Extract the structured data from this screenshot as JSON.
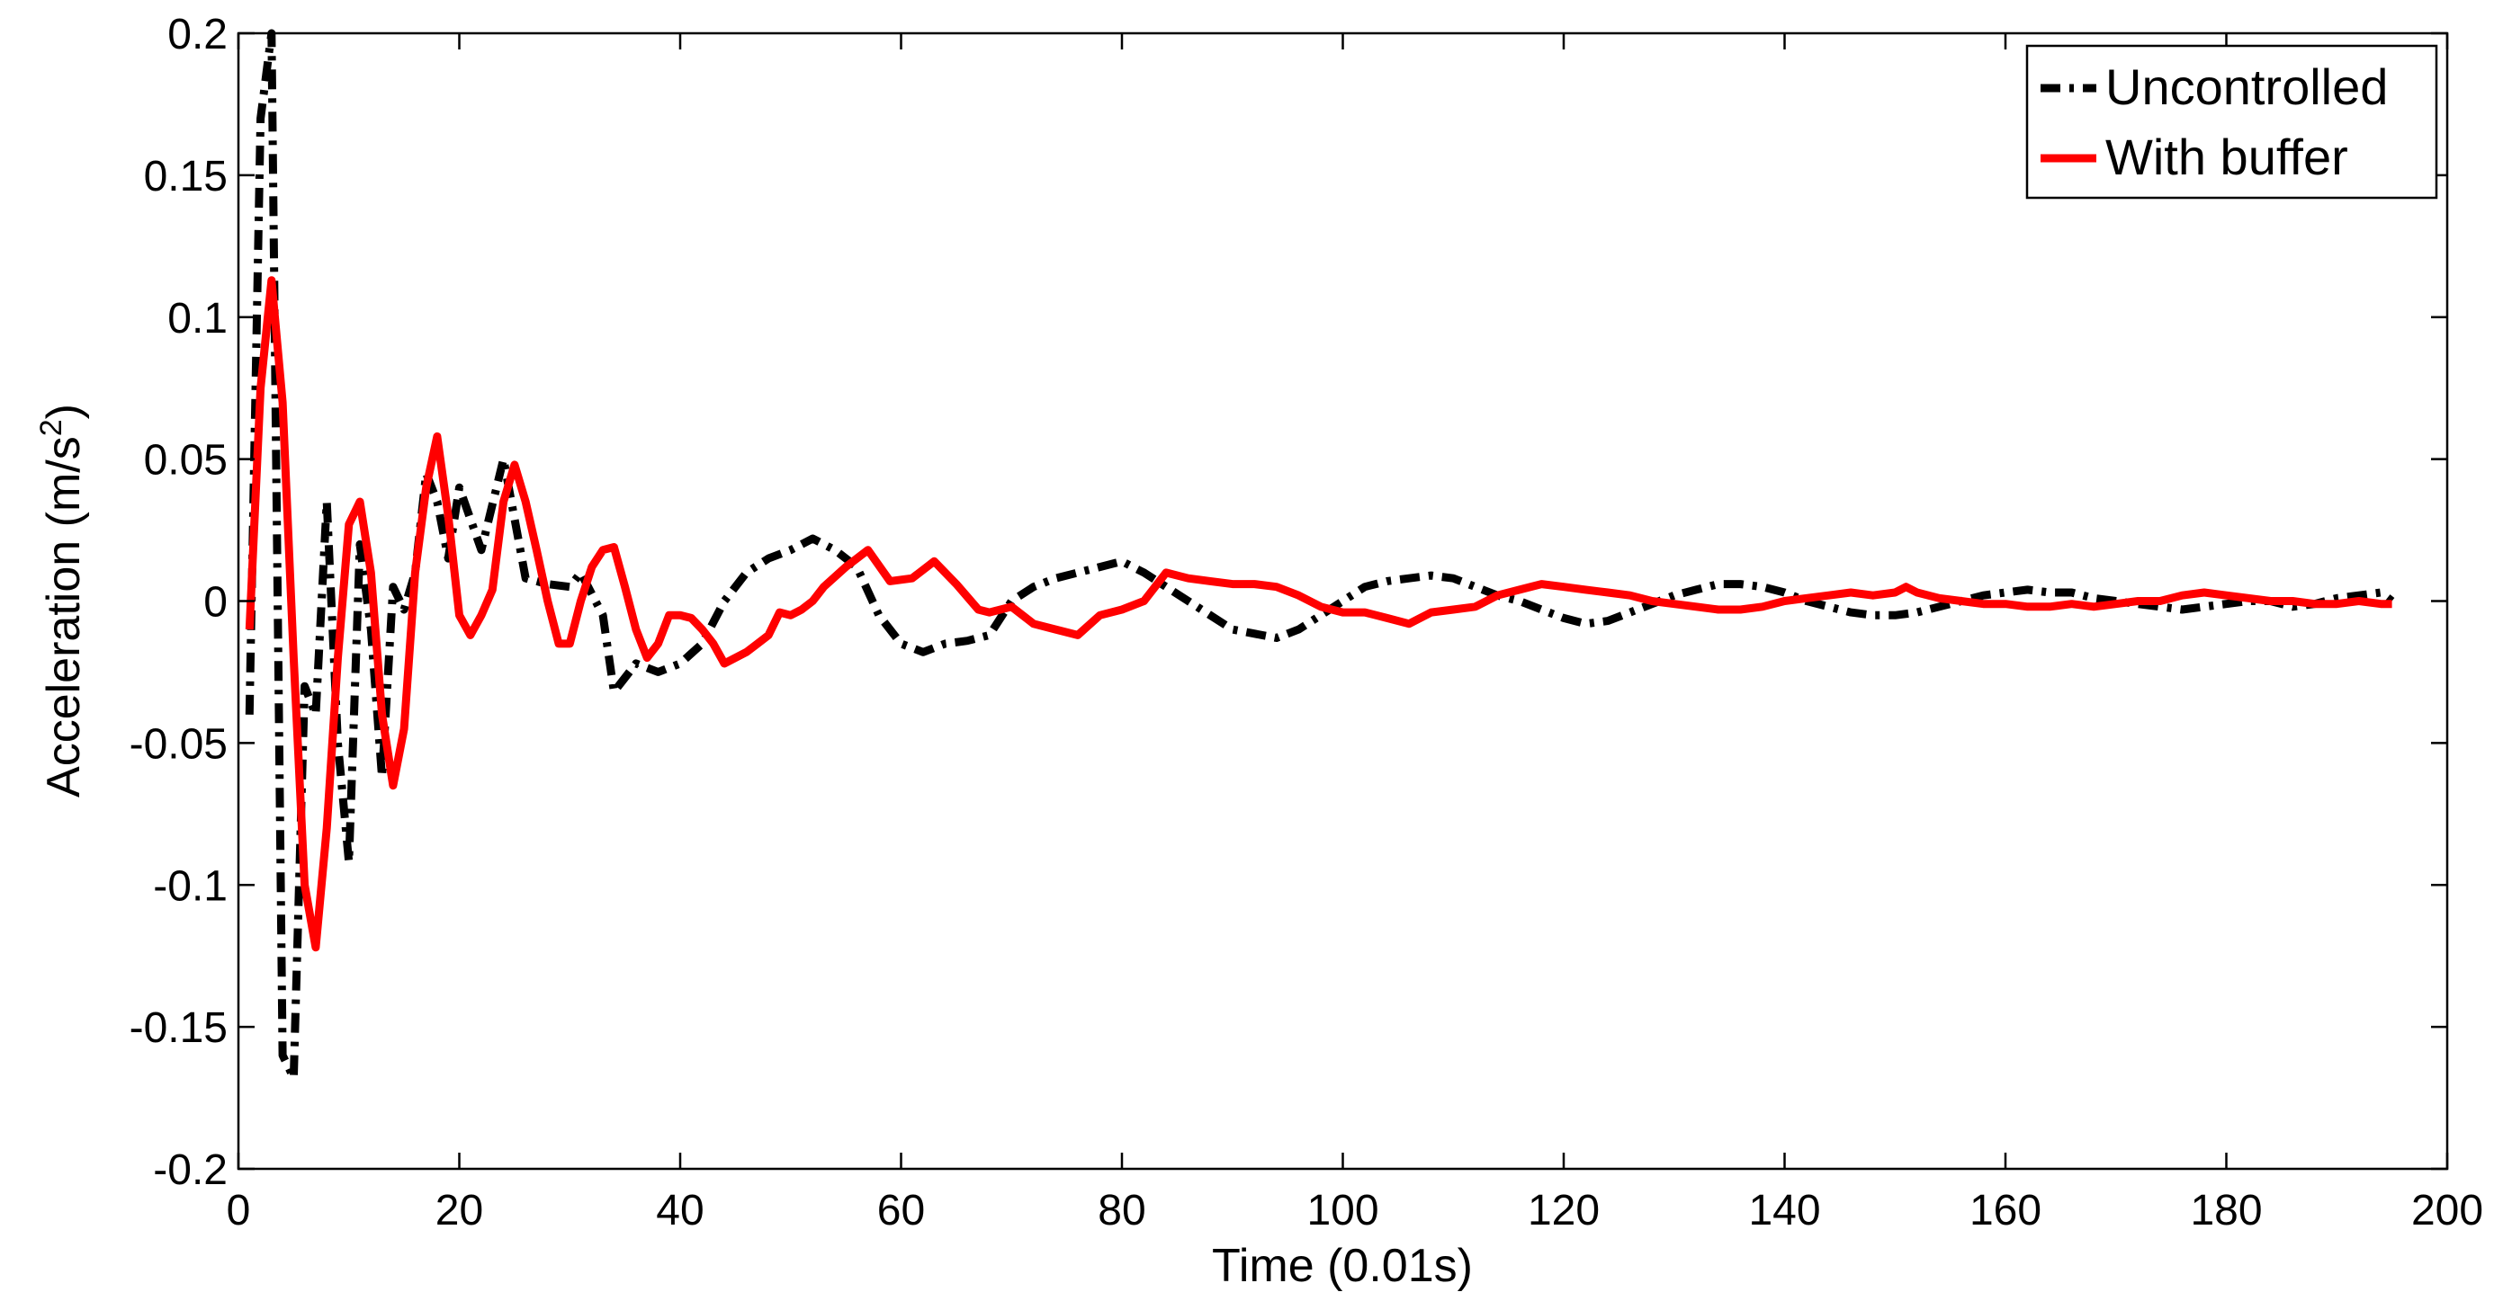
{
  "chart_data": {
    "type": "line",
    "xlabel": "Time (0.01s)",
    "ylabel": "Acceleration  (m/s",
    "ylabel_superscript": "2",
    "ylabel_suffix": ")",
    "xlim": [
      0,
      200
    ],
    "ylim": [
      -0.2,
      0.2
    ],
    "xticks": [
      "0",
      "20",
      "40",
      "60",
      "80",
      "100",
      "120",
      "140",
      "160",
      "180",
      "200"
    ],
    "yticks": [
      "-0.2",
      "-0.15",
      "-0.1",
      "-0.05",
      "0",
      "0.05",
      "0.1",
      "0.15",
      "0.2"
    ],
    "grid": false,
    "legend_position": "top-right",
    "series": [
      {
        "name": "Uncontrolled",
        "color": "#000000",
        "style": "dash-dot",
        "x": [
          1,
          2,
          3,
          4,
          5,
          6,
          7,
          8,
          9,
          10,
          11,
          12,
          13,
          14,
          15,
          16,
          17,
          18,
          19,
          20,
          22,
          24,
          26,
          28,
          30,
          31,
          33,
          34,
          36,
          38,
          40,
          42,
          44,
          46,
          48,
          50,
          52,
          54,
          56,
          58,
          60,
          62,
          64,
          66,
          68,
          70,
          72,
          74,
          76,
          78,
          80,
          82,
          84,
          86,
          88,
          90,
          94,
          96,
          98,
          100,
          102,
          104,
          106,
          108,
          110,
          112,
          114,
          116,
          118,
          120,
          122,
          124,
          126,
          128,
          130,
          132,
          134,
          136,
          138,
          140,
          142,
          144,
          146,
          148,
          150,
          152,
          154,
          156,
          158,
          160,
          162,
          164,
          166,
          168,
          170,
          172,
          174,
          176,
          178,
          180,
          182,
          184,
          186,
          188,
          190,
          192,
          194,
          195
        ],
        "y": [
          -0.04,
          0.17,
          0.2,
          -0.16,
          -0.168,
          -0.03,
          -0.04,
          0.035,
          -0.05,
          -0.092,
          0.02,
          -0.01,
          -0.062,
          0.005,
          -0.003,
          0.01,
          0.045,
          0.035,
          0.015,
          0.04,
          0.018,
          0.05,
          0.008,
          0.006,
          0.005,
          0.01,
          -0.005,
          -0.032,
          -0.022,
          -0.025,
          -0.022,
          -0.015,
          0.0,
          0.01,
          0.015,
          0.018,
          0.022,
          0.018,
          0.012,
          -0.005,
          -0.015,
          -0.018,
          -0.015,
          -0.014,
          -0.012,
          0.0,
          0.005,
          0.008,
          0.01,
          0.012,
          0.014,
          0.01,
          0.005,
          0.0,
          -0.005,
          -0.01,
          -0.013,
          -0.01,
          -0.005,
          0.0,
          0.005,
          0.007,
          0.008,
          0.009,
          0.008,
          0.005,
          0.002,
          0.0,
          -0.003,
          -0.006,
          -0.008,
          -0.007,
          -0.004,
          -0.001,
          0.002,
          0.004,
          0.006,
          0.006,
          0.005,
          0.003,
          0.0,
          -0.002,
          -0.004,
          -0.005,
          -0.005,
          -0.004,
          -0.002,
          0.0,
          0.002,
          0.003,
          0.004,
          0.003,
          0.003,
          0.001,
          0.0,
          -0.001,
          -0.002,
          -0.003,
          -0.002,
          -0.001,
          0.0,
          0.0,
          -0.002,
          -0.001,
          0.001,
          0.002,
          0.003,
          0.0
        ]
      },
      {
        "name": "With buffer",
        "color": "#ff0000",
        "style": "solid",
        "x": [
          1,
          2,
          3,
          4,
          5,
          6,
          7,
          8,
          9,
          10,
          11,
          12,
          13,
          14,
          15,
          16,
          17,
          18,
          19,
          20,
          21,
          22,
          23,
          24,
          25,
          26,
          27,
          28,
          29,
          30,
          31,
          32,
          33,
          34,
          35,
          36,
          37,
          38,
          39,
          40,
          41,
          42,
          43,
          44,
          46,
          47,
          48,
          49,
          50,
          51,
          52,
          53,
          55,
          57,
          59,
          61,
          63,
          65,
          67,
          68,
          70,
          72,
          74,
          76,
          78,
          80,
          82,
          84,
          86,
          88,
          90,
          92,
          94,
          96,
          98,
          100,
          102,
          104,
          106,
          108,
          110,
          112,
          114,
          116,
          118,
          120,
          122,
          124,
          126,
          128,
          130,
          132,
          134,
          136,
          138,
          140,
          142,
          144,
          146,
          148,
          150,
          151,
          152,
          154,
          156,
          158,
          160,
          162,
          164,
          166,
          168,
          170,
          172,
          174,
          176,
          178,
          180,
          182,
          184,
          186,
          188,
          190,
          192,
          194,
          195
        ],
        "y": [
          -0.01,
          0.075,
          0.113,
          0.07,
          -0.02,
          -0.1,
          -0.122,
          -0.08,
          -0.02,
          0.027,
          0.035,
          0.01,
          -0.04,
          -0.065,
          -0.045,
          0.01,
          0.04,
          0.058,
          0.03,
          -0.005,
          -0.012,
          -0.005,
          0.004,
          0.035,
          0.048,
          0.035,
          0.018,
          0.0,
          -0.015,
          -0.015,
          0.0,
          0.012,
          0.018,
          0.019,
          0.005,
          -0.01,
          -0.02,
          -0.015,
          -0.005,
          -0.005,
          -0.006,
          -0.01,
          -0.015,
          -0.022,
          -0.018,
          -0.015,
          -0.012,
          -0.004,
          -0.005,
          -0.003,
          0.0,
          0.005,
          0.012,
          0.018,
          0.007,
          0.008,
          0.014,
          0.006,
          -0.003,
          -0.004,
          -0.002,
          -0.008,
          -0.01,
          -0.012,
          -0.005,
          -0.003,
          0.0,
          0.01,
          0.008,
          0.007,
          0.006,
          0.006,
          0.005,
          0.002,
          -0.002,
          -0.004,
          -0.004,
          -0.006,
          -0.008,
          -0.004,
          -0.003,
          -0.002,
          0.002,
          0.004,
          0.006,
          0.005,
          0.004,
          0.003,
          0.002,
          0.0,
          -0.001,
          -0.002,
          -0.003,
          -0.003,
          -0.002,
          0.0,
          0.001,
          0.002,
          0.003,
          0.002,
          0.003,
          0.005,
          0.003,
          0.001,
          0.0,
          -0.001,
          -0.001,
          -0.002,
          -0.002,
          -0.001,
          -0.002,
          -0.001,
          0.0,
          0.0,
          0.002,
          0.003,
          0.002,
          0.001,
          0.0,
          0.0,
          -0.001,
          -0.001,
          0.0,
          -0.001,
          -0.001
        ]
      }
    ]
  }
}
